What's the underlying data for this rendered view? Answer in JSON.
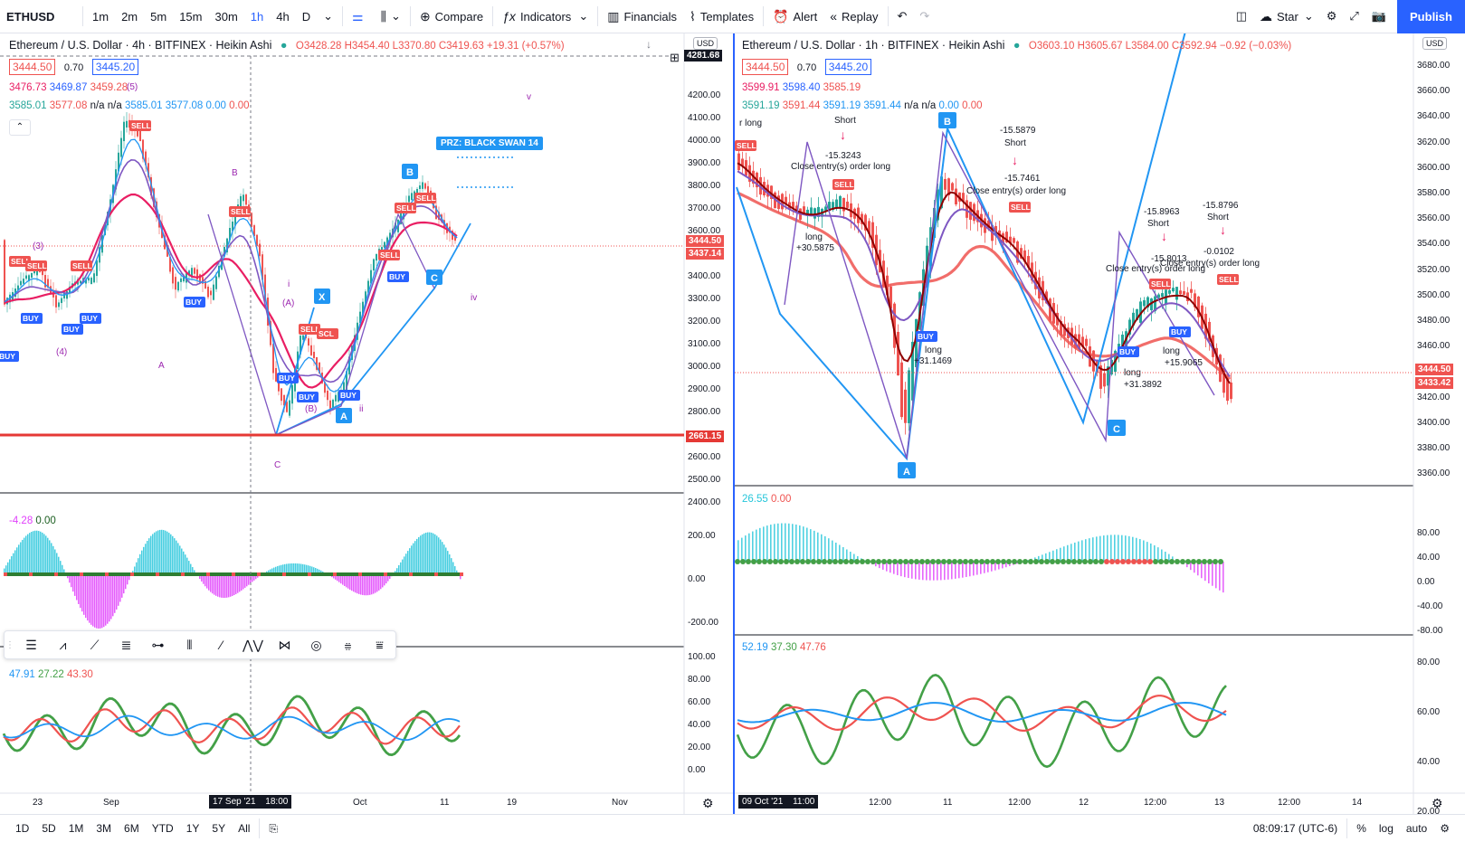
{
  "toolbar": {
    "symbol": "ETHUSD",
    "intervals": [
      "1m",
      "2m",
      "5m",
      "15m",
      "30m",
      "1h",
      "4h",
      "D"
    ],
    "active_interval": "1h",
    "compare": "Compare",
    "indicators": "Indicators",
    "financials": "Financials",
    "templates": "Templates",
    "alert": "Alert",
    "replay": "Replay",
    "star": "Star",
    "publish": "Publish"
  },
  "left": {
    "title": "Ethereum / U.S. Dollar · 4h · BITFINEX · Heikin Ashi",
    "ohlc": "O3428.28 H3454.40 L3370.80 C3419.63 +19.31 (+0.57%)",
    "bid": "3444.50",
    "spread": "0.70",
    "ask": "3445.20",
    "line3": [
      "3476.73",
      "3469.87",
      "3459.28"
    ],
    "line4": [
      "3585.01",
      "3577.08",
      "n/a",
      "n/a",
      "3585.01",
      "3577.08",
      "0.00",
      "0.00"
    ],
    "currency": "USD",
    "axis": [
      "4281.68",
      "4200.00",
      "4100.00",
      "4000.00",
      "3900.00",
      "3800.00",
      "3700.00",
      "3600.00",
      "3500.00",
      "3400.00",
      "3300.00",
      "3200.00",
      "3100.00",
      "3000.00",
      "2900.00",
      "2800.00",
      "2700.00",
      "2600.00",
      "2500.00",
      "2400.00"
    ],
    "price_tag_1": "3444.50",
    "price_tag_2": "3437.14",
    "support_tag": "2661.15",
    "prz_label": "PRZ: BLACK SWAN 14",
    "osc_legend": [
      "-4.28",
      "0.00"
    ],
    "osc_axis": [
      "200.00",
      "0.00",
      "-200.00"
    ],
    "rsi_legend": [
      "47.91",
      "27.22",
      "43.30"
    ],
    "rsi_axis": [
      "100.00",
      "80.00",
      "60.00",
      "40.00",
      "20.00",
      "0.00"
    ],
    "time_axis": [
      "23",
      "Sep",
      "17 Sep '21",
      "18:00",
      "Oct",
      "11",
      "19",
      "Nov"
    ],
    "waves": [
      "(3)",
      "(4)",
      "A",
      "B",
      "i",
      "(A)",
      "(B)",
      "C",
      "ii",
      "iv",
      "v",
      "(5)"
    ],
    "points": [
      "X",
      "A",
      "B",
      "C"
    ]
  },
  "right": {
    "title": "Ethereum / U.S. Dollar · 1h · BITFINEX · Heikin Ashi",
    "ohlc": "O3603.10 H3605.67 L3584.00 C3592.94 −0.92 (−0.03%)",
    "bid": "3444.50",
    "spread": "0.70",
    "ask": "3445.20",
    "line3": [
      "3599.91",
      "3598.40",
      "3585.19"
    ],
    "line4": [
      "3591.19",
      "3591.44",
      "3591.19",
      "3591.44",
      "n/a",
      "n/a",
      "0.00",
      "0.00"
    ],
    "currency": "USD",
    "axis": [
      "3680.00",
      "3660.00",
      "3640.00",
      "3620.00",
      "3600.00",
      "3580.00",
      "3560.00",
      "3540.00",
      "3520.00",
      "3500.00",
      "3480.00",
      "3460.00",
      "3440.00",
      "3420.00",
      "3400.00",
      "3380.00",
      "3360.00"
    ],
    "price_tag_1": "3444.50",
    "price_tag_2": "3433.42",
    "osc_legend": [
      "26.55",
      "0.00"
    ],
    "osc_axis": [
      "80.00",
      "40.00",
      "0.00",
      "-40.00",
      "-80.00"
    ],
    "rsi_legend": [
      "52.19",
      "37.30",
      "47.76"
    ],
    "rsi_axis": [
      "80.00",
      "60.00",
      "40.00",
      "20.00"
    ],
    "time_axis": [
      "09 Oct '21",
      "11:00",
      "12:00",
      "11",
      "12:00",
      "12",
      "12:00",
      "13",
      "12:00",
      "14"
    ],
    "points": [
      "B",
      "A",
      "C"
    ],
    "annotations": [
      {
        "t": "Short"
      },
      {
        "t": "-15.3243"
      },
      {
        "t": "Close entry(s) order long"
      },
      {
        "t": "-15.5879"
      },
      {
        "t": "Short"
      },
      {
        "t": "-15.7461"
      },
      {
        "t": "Close entry(s) order long"
      },
      {
        "t": "long"
      },
      {
        "t": "+30.5875"
      },
      {
        "t": "long"
      },
      {
        "t": "+31.1469"
      },
      {
        "t": "-15.8963"
      },
      {
        "t": "Short"
      },
      {
        "t": "-15.8796"
      },
      {
        "t": "Short"
      },
      {
        "t": "-0.0102"
      },
      {
        "t": "Close entry(s) order long"
      },
      {
        "t": "-15.8013"
      },
      {
        "t": "Close entry(s) order long"
      },
      {
        "t": "long"
      },
      {
        "t": "+15.9065"
      },
      {
        "t": "long"
      },
      {
        "t": "+31.3892"
      },
      {
        "t": "r long"
      }
    ]
  },
  "bottom": {
    "ranges": [
      "1D",
      "5D",
      "1M",
      "3M",
      "6M",
      "YTD",
      "1Y",
      "5Y",
      "All"
    ],
    "clock": "08:09:17 (UTC-6)",
    "pct": "%",
    "log": "log",
    "auto": "auto"
  },
  "colors": {
    "up": "#26a69a",
    "down": "#ef5350",
    "accent": "#2962ff",
    "ema": "#ef5350",
    "ma": "#7e57c2"
  }
}
